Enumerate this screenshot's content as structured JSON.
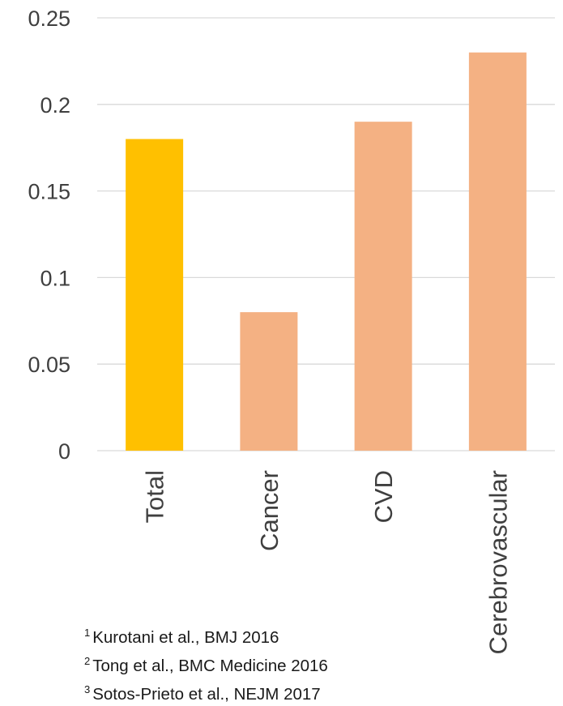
{
  "chart_data": {
    "type": "bar",
    "title": "",
    "xlabel": "",
    "ylabel": "",
    "categories": [
      "Total",
      "Cancer",
      "CVD",
      "Cerebrovascular"
    ],
    "values": [
      0.18,
      0.08,
      0.19,
      0.23
    ],
    "bar_colors": [
      "#ffc000",
      "#f4b183",
      "#f4b183",
      "#f4b183"
    ],
    "ylim": [
      0,
      0.25
    ],
    "yticks": [
      "0",
      "0.05",
      "0.1",
      "0.15",
      "0.2",
      "0.25"
    ],
    "grid": true,
    "legend": "none"
  },
  "references": [
    {
      "num": "1",
      "text": "Kurotani et al., BMJ 2016"
    },
    {
      "num": "2",
      "text": "Tong et al., BMC Medicine 2016"
    },
    {
      "num": "3",
      "text": "Sotos-Prieto et al., NEJM 2017"
    }
  ]
}
